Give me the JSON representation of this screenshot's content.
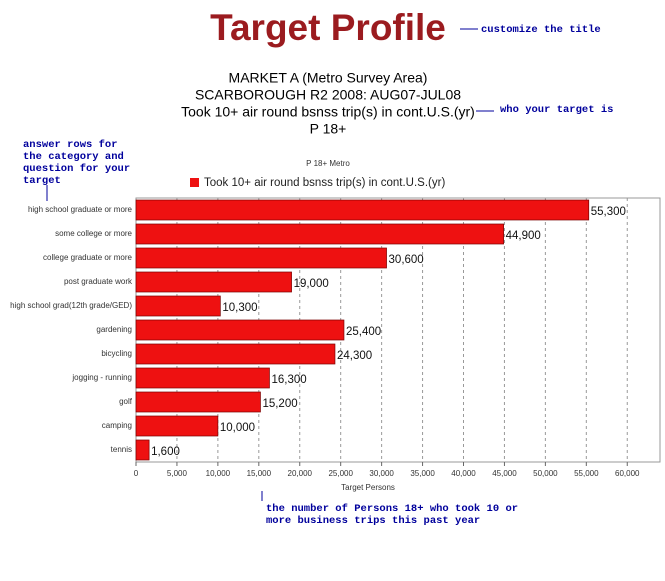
{
  "chart_data": {
    "type": "hbar",
    "title": "Target Profile",
    "subtitle": [
      "MARKET A (Metro Survey Area)",
      "SCARBOROUGH R2 2008: AUG07-JUL08",
      "Took 10+ air round bsnss trip(s) in cont.U.S.(yr)",
      "P 18+"
    ],
    "chart_title": "P 18+ Metro",
    "annotations": {
      "title_note": "customize the title",
      "target_note": "who your target is",
      "rows_note": [
        "answer rows for",
        "the category and",
        "question for your",
        "target"
      ],
      "axis_note": [
        "the number of Persons 18+ who took 10 or",
        "more business trips this past year"
      ]
    },
    "xlabel": "Target Persons",
    "categories": [
      "high school graduate or more",
      "some college or more",
      "college graduate or more",
      "post graduate work",
      "high school grad(12th grade/GED)",
      "gardening",
      "bicycling",
      "jogging - running",
      "golf",
      "camping",
      "tennis"
    ],
    "series": [
      {
        "name": "Took 10+ air round bsnss trip(s) in cont.U.S.(yr)",
        "color": "#ee1111",
        "values": [
          55300,
          44900,
          30600,
          19000,
          10300,
          25400,
          24300,
          16300,
          15200,
          10000,
          1600
        ],
        "value_labels": [
          "55,300",
          "44,900",
          "30,600",
          "19,000",
          "10,300",
          "25,400",
          "24,300",
          "16,300",
          "15,200",
          "10,000",
          "1,600"
        ]
      }
    ],
    "xlim": [
      0,
      64000
    ],
    "xticks": [
      0,
      {
        "value": 5000,
        "label": "5,000"
      },
      {
        "value": 10000,
        "label": "10,000"
      },
      {
        "value": 15000,
        "label": "15,000"
      },
      {
        "value": 20000,
        "label": "20,000"
      },
      {
        "value": 25000,
        "label": "25,000"
      },
      {
        "value": 30000,
        "label": "30,000"
      },
      {
        "value": 35000,
        "label": "35,000"
      },
      {
        "value": 40000,
        "label": "40,000"
      },
      {
        "value": 45000,
        "label": "45,000"
      },
      {
        "value": 50000,
        "label": "50,000"
      },
      {
        "value": 55000,
        "label": "55,000"
      },
      {
        "value": 60000,
        "label": "60,000"
      }
    ],
    "grid": true,
    "title_color": "#9b1b1f",
    "annotation_color": "#00009c"
  }
}
